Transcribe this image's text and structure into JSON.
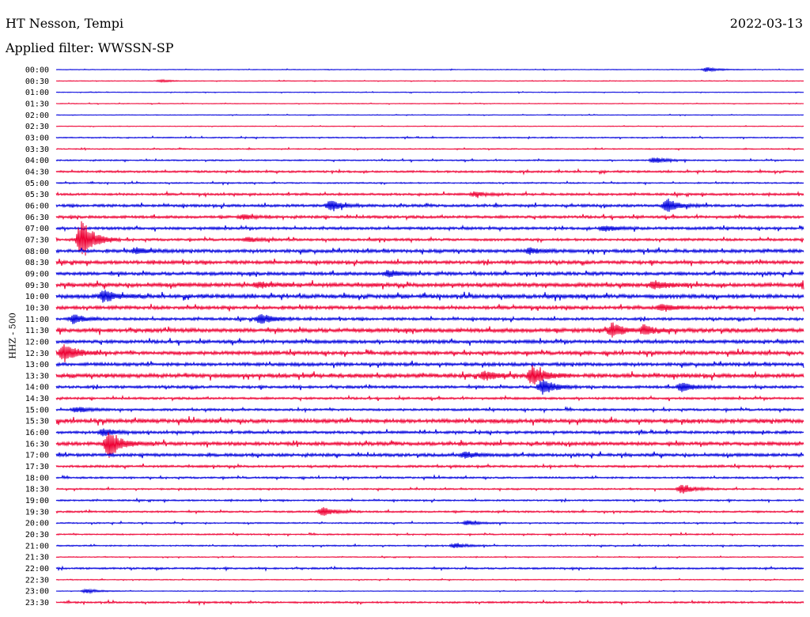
{
  "header": {
    "station": "HT Nesson, Tempi",
    "date": "2022-03-13",
    "filter": "Applied filter: WWSSN-SP"
  },
  "channel_label": "HHZ - 500",
  "colors": {
    "even_trace": "#0000dd",
    "odd_trace": "#ee0033"
  },
  "chart_data": {
    "type": "helicorder",
    "title": "HT Nesson, Tempi",
    "ylabel": "HHZ - 500",
    "row_labels": [
      "00:00",
      "00:30",
      "01:00",
      "01:30",
      "02:00",
      "02:30",
      "03:00",
      "03:30",
      "04:00",
      "04:30",
      "05:00",
      "05:30",
      "06:00",
      "06:30",
      "07:00",
      "07:30",
      "08:00",
      "08:30",
      "09:00",
      "09:30",
      "10:00",
      "10:30",
      "11:00",
      "11:30",
      "12:00",
      "12:30",
      "13:00",
      "13:30",
      "14:00",
      "14:30",
      "15:00",
      "15:30",
      "16:00",
      "16:30",
      "17:00",
      "17:30",
      "18:00",
      "18:30",
      "19:00",
      "19:30",
      "20:00",
      "20:30",
      "21:00",
      "21:30",
      "22:00",
      "22:30",
      "23:00",
      "23:30"
    ],
    "row_minutes": 30,
    "noise_level": [
      0.3,
      0.3,
      0.3,
      0.3,
      0.3,
      0.3,
      0.5,
      0.5,
      0.6,
      0.9,
      0.6,
      1.0,
      1.2,
      1.2,
      1.2,
      1.1,
      1.5,
      1.5,
      1.5,
      1.8,
      1.8,
      1.5,
      1.2,
      1.8,
      1.5,
      1.6,
      1.5,
      1.8,
      1.2,
      1.0,
      1.0,
      1.8,
      1.2,
      1.6,
      1.4,
      1.0,
      0.8,
      0.7,
      0.7,
      0.8,
      0.6,
      0.6,
      0.6,
      0.4,
      0.8,
      0.4,
      0.3,
      0.8
    ],
    "events": [
      {
        "row": "00:00",
        "minute": 26.1,
        "amplitude": 3
      },
      {
        "row": "00:30",
        "minute": 4.2,
        "amplitude": 1.5
      },
      {
        "row": "04:00",
        "minute": 24.0,
        "amplitude": 4
      },
      {
        "row": "05:30",
        "minute": 16.8,
        "amplitude": 3
      },
      {
        "row": "06:00",
        "minute": 11.0,
        "amplitude": 7
      },
      {
        "row": "06:00",
        "minute": 24.5,
        "amplitude": 9
      },
      {
        "row": "06:30",
        "minute": 7.5,
        "amplitude": 3
      },
      {
        "row": "07:00",
        "minute": 22.0,
        "amplitude": 4
      },
      {
        "row": "07:30",
        "minute": 1.0,
        "amplitude": 28
      },
      {
        "row": "07:30",
        "minute": 7.7,
        "amplitude": 3
      },
      {
        "row": "08:00",
        "minute": 3.2,
        "amplitude": 4
      },
      {
        "row": "08:00",
        "minute": 19.0,
        "amplitude": 4
      },
      {
        "row": "09:00",
        "minute": 13.3,
        "amplitude": 4
      },
      {
        "row": "09:30",
        "minute": 8.1,
        "amplitude": 4
      },
      {
        "row": "09:30",
        "minute": 24.0,
        "amplitude": 5
      },
      {
        "row": "09:30",
        "minute": 30.0,
        "amplitude": 5
      },
      {
        "row": "10:00",
        "minute": 1.9,
        "amplitude": 8
      },
      {
        "row": "10:30",
        "minute": 24.3,
        "amplitude": 5
      },
      {
        "row": "11:00",
        "minute": 0.7,
        "amplitude": 6
      },
      {
        "row": "11:00",
        "minute": 8.2,
        "amplitude": 7
      },
      {
        "row": "11:30",
        "minute": 22.3,
        "amplitude": 9
      },
      {
        "row": "11:30",
        "minute": 23.6,
        "amplitude": 6
      },
      {
        "row": "12:30",
        "minute": 0.3,
        "amplitude": 12
      },
      {
        "row": "13:30",
        "minute": 17.2,
        "amplitude": 6
      },
      {
        "row": "13:30",
        "minute": 19.1,
        "amplitude": 13
      },
      {
        "row": "14:00",
        "minute": 19.5,
        "amplitude": 11
      },
      {
        "row": "14:00",
        "minute": 25.1,
        "amplitude": 6
      },
      {
        "row": "15:00",
        "minute": 0.8,
        "amplitude": 4
      },
      {
        "row": "16:00",
        "minute": 1.9,
        "amplitude": 5
      },
      {
        "row": "16:30",
        "minute": 2.1,
        "amplitude": 18
      },
      {
        "row": "17:00",
        "minute": 16.4,
        "amplitude": 4
      },
      {
        "row": "18:30",
        "minute": 25.1,
        "amplitude": 6
      },
      {
        "row": "19:30",
        "minute": 10.7,
        "amplitude": 6
      },
      {
        "row": "20:00",
        "minute": 16.5,
        "amplitude": 3
      },
      {
        "row": "21:00",
        "minute": 16.0,
        "amplitude": 3
      },
      {
        "row": "23:00",
        "minute": 1.2,
        "amplitude": 3
      }
    ]
  }
}
